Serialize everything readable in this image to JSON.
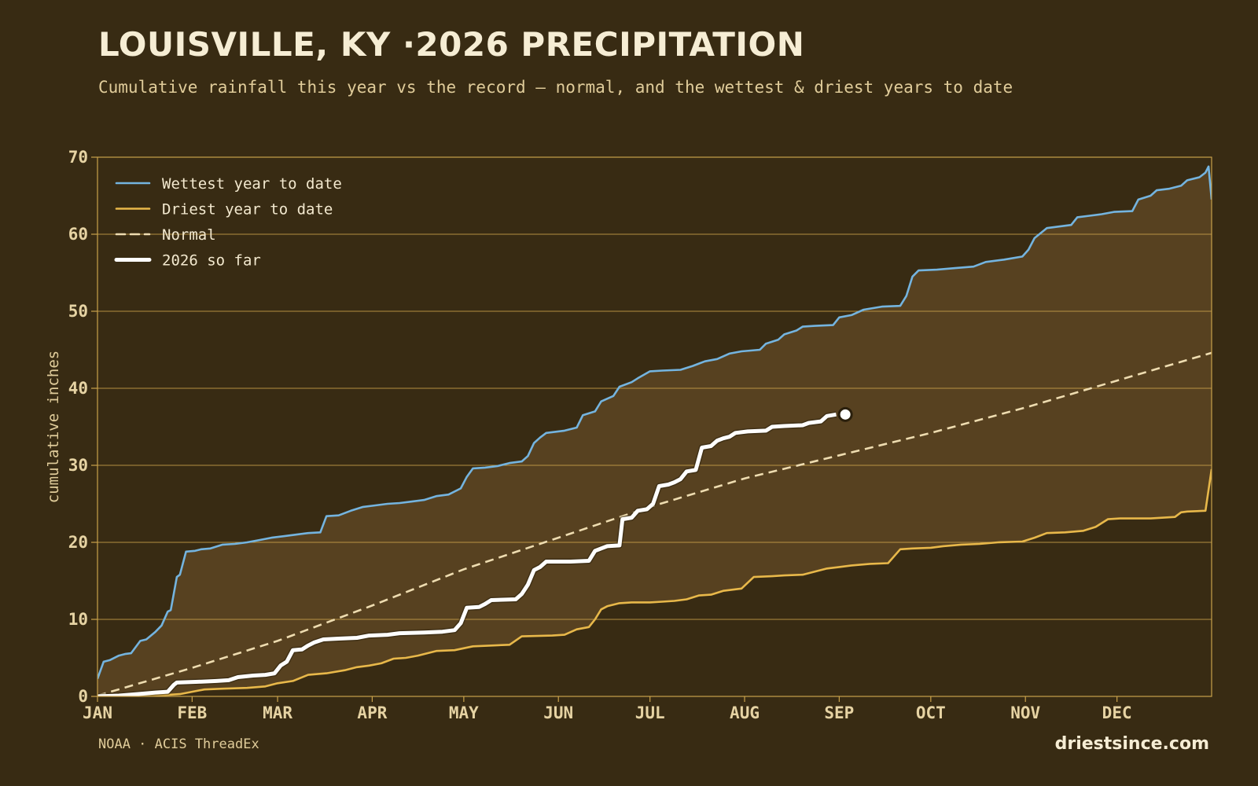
{
  "header": {
    "title": "LOUISVILLE, KY ·2026 PRECIPITATION",
    "subtitle": "Cumulative rainfall this year vs the record — normal, and the wettest & driest years to date"
  },
  "footer": {
    "source": "NOAA · ACIS ThreadEx",
    "brand": "driestsince.com"
  },
  "chart_data": {
    "type": "line",
    "xlabel": "",
    "ylabel": "cumulative inches",
    "ylim": [
      0,
      70
    ],
    "yticks": [
      0,
      10,
      20,
      30,
      40,
      50,
      60,
      70
    ],
    "xlim": [
      1,
      366
    ],
    "month_ticks": [
      {
        "label": "JAN",
        "day": 1
      },
      {
        "label": "FEB",
        "day": 32
      },
      {
        "label": "MAR",
        "day": 60
      },
      {
        "label": "APR",
        "day": 91
      },
      {
        "label": "MAY",
        "day": 121
      },
      {
        "label": "JUN",
        "day": 152
      },
      {
        "label": "JUL",
        "day": 182
      },
      {
        "label": "AUG",
        "day": 213
      },
      {
        "label": "SEP",
        "day": 244
      },
      {
        "label": "OCT",
        "day": 274
      },
      {
        "label": "NOV",
        "day": 305
      },
      {
        "label": "DEC",
        "day": 335
      }
    ],
    "grid": true,
    "legend_position": "top-left",
    "colors": {
      "wettest": "#74b4df",
      "driest": "#e8b84a",
      "normal": "#eedcb0",
      "current": "#ffffff",
      "band": "#574120",
      "grid": "#c9a14a"
    },
    "series": [
      {
        "key": "wettest",
        "name": "Wettest year to date",
        "points": [
          [
            1,
            2.3
          ],
          [
            3,
            4.5
          ],
          [
            5,
            4.7
          ],
          [
            8,
            5.3
          ],
          [
            10,
            5.5
          ],
          [
            12,
            5.6
          ],
          [
            15,
            7.2
          ],
          [
            17,
            7.4
          ],
          [
            20,
            8.4
          ],
          [
            22,
            9.2
          ],
          [
            24,
            11.0
          ],
          [
            25,
            11.2
          ],
          [
            27,
            15.5
          ],
          [
            28,
            15.8
          ],
          [
            30,
            18.8
          ],
          [
            33,
            18.9
          ],
          [
            35,
            19.1
          ],
          [
            38,
            19.2
          ],
          [
            42,
            19.7
          ],
          [
            46,
            19.8
          ],
          [
            50,
            20.0
          ],
          [
            54,
            20.3
          ],
          [
            58,
            20.6
          ],
          [
            62,
            20.8
          ],
          [
            66,
            21.0
          ],
          [
            70,
            21.2
          ],
          [
            74,
            21.3
          ],
          [
            76,
            23.4
          ],
          [
            80,
            23.5
          ],
          [
            84,
            24.1
          ],
          [
            88,
            24.6
          ],
          [
            92,
            24.8
          ],
          [
            96,
            25.0
          ],
          [
            100,
            25.1
          ],
          [
            104,
            25.3
          ],
          [
            108,
            25.5
          ],
          [
            112,
            26.0
          ],
          [
            116,
            26.2
          ],
          [
            120,
            27.0
          ],
          [
            122,
            28.5
          ],
          [
            124,
            29.6
          ],
          [
            128,
            29.7
          ],
          [
            132,
            29.9
          ],
          [
            136,
            30.3
          ],
          [
            140,
            30.5
          ],
          [
            142,
            31.2
          ],
          [
            144,
            32.9
          ],
          [
            146,
            33.6
          ],
          [
            148,
            34.2
          ],
          [
            154,
            34.5
          ],
          [
            158,
            34.9
          ],
          [
            160,
            36.5
          ],
          [
            164,
            37.0
          ],
          [
            166,
            38.3
          ],
          [
            170,
            39.0
          ],
          [
            172,
            40.2
          ],
          [
            176,
            40.8
          ],
          [
            178,
            41.3
          ],
          [
            182,
            42.2
          ],
          [
            186,
            42.3
          ],
          [
            192,
            42.4
          ],
          [
            196,
            42.9
          ],
          [
            200,
            43.5
          ],
          [
            204,
            43.8
          ],
          [
            208,
            44.5
          ],
          [
            212,
            44.8
          ],
          [
            218,
            45.0
          ],
          [
            220,
            45.8
          ],
          [
            224,
            46.3
          ],
          [
            226,
            47.0
          ],
          [
            230,
            47.5
          ],
          [
            232,
            48.0
          ],
          [
            236,
            48.1
          ],
          [
            242,
            48.2
          ],
          [
            244,
            49.2
          ],
          [
            248,
            49.5
          ],
          [
            252,
            50.2
          ],
          [
            258,
            50.6
          ],
          [
            264,
            50.7
          ],
          [
            266,
            52.0
          ],
          [
            268,
            54.5
          ],
          [
            270,
            55.3
          ],
          [
            276,
            55.4
          ],
          [
            282,
            55.6
          ],
          [
            288,
            55.8
          ],
          [
            292,
            56.4
          ],
          [
            298,
            56.7
          ],
          [
            304,
            57.1
          ],
          [
            306,
            58.0
          ],
          [
            308,
            59.5
          ],
          [
            312,
            60.8
          ],
          [
            316,
            61.0
          ],
          [
            320,
            61.2
          ],
          [
            322,
            62.2
          ],
          [
            326,
            62.4
          ],
          [
            330,
            62.6
          ],
          [
            334,
            62.9
          ],
          [
            340,
            63.0
          ],
          [
            342,
            64.5
          ],
          [
            346,
            65.0
          ],
          [
            348,
            65.7
          ],
          [
            352,
            65.9
          ],
          [
            356,
            66.3
          ],
          [
            358,
            67.0
          ],
          [
            362,
            67.4
          ],
          [
            364,
            68.0
          ],
          [
            365,
            68.8
          ],
          [
            366,
            64.5
          ]
        ]
      },
      {
        "key": "driest",
        "name": "Driest year to date",
        "points": [
          [
            1,
            0
          ],
          [
            20,
            0.1
          ],
          [
            28,
            0.3
          ],
          [
            32,
            0.6
          ],
          [
            36,
            0.9
          ],
          [
            42,
            1.0
          ],
          [
            50,
            1.1
          ],
          [
            56,
            1.3
          ],
          [
            60,
            1.7
          ],
          [
            65,
            2.0
          ],
          [
            70,
            2.8
          ],
          [
            76,
            3.0
          ],
          [
            82,
            3.4
          ],
          [
            86,
            3.8
          ],
          [
            90,
            4.0
          ],
          [
            94,
            4.3
          ],
          [
            98,
            4.9
          ],
          [
            102,
            5.0
          ],
          [
            106,
            5.3
          ],
          [
            112,
            5.9
          ],
          [
            118,
            6.0
          ],
          [
            124,
            6.5
          ],
          [
            130,
            6.6
          ],
          [
            136,
            6.7
          ],
          [
            140,
            7.8
          ],
          [
            150,
            7.9
          ],
          [
            154,
            8.0
          ],
          [
            158,
            8.7
          ],
          [
            162,
            9.0
          ],
          [
            164,
            10.0
          ],
          [
            166,
            11.3
          ],
          [
            168,
            11.7
          ],
          [
            172,
            12.1
          ],
          [
            176,
            12.2
          ],
          [
            182,
            12.2
          ],
          [
            186,
            12.3
          ],
          [
            190,
            12.4
          ],
          [
            194,
            12.6
          ],
          [
            198,
            13.1
          ],
          [
            202,
            13.2
          ],
          [
            206,
            13.7
          ],
          [
            212,
            14.0
          ],
          [
            216,
            15.5
          ],
          [
            222,
            15.6
          ],
          [
            226,
            15.7
          ],
          [
            232,
            15.8
          ],
          [
            236,
            16.2
          ],
          [
            240,
            16.6
          ],
          [
            244,
            16.8
          ],
          [
            248,
            17.0
          ],
          [
            254,
            17.2
          ],
          [
            260,
            17.3
          ],
          [
            264,
            19.1
          ],
          [
            268,
            19.2
          ],
          [
            274,
            19.3
          ],
          [
            278,
            19.5
          ],
          [
            284,
            19.7
          ],
          [
            290,
            19.8
          ],
          [
            296,
            20.0
          ],
          [
            304,
            20.1
          ],
          [
            308,
            20.6
          ],
          [
            312,
            21.2
          ],
          [
            318,
            21.3
          ],
          [
            324,
            21.5
          ],
          [
            328,
            22.0
          ],
          [
            332,
            23.0
          ],
          [
            336,
            23.1
          ],
          [
            346,
            23.1
          ],
          [
            354,
            23.3
          ],
          [
            356,
            23.9
          ],
          [
            358,
            24.0
          ],
          [
            364,
            24.1
          ],
          [
            366,
            29.5
          ]
        ]
      },
      {
        "key": "normal",
        "name": "Normal",
        "points": [
          [
            1,
            0.1
          ],
          [
            32,
            3.7
          ],
          [
            60,
            7.2
          ],
          [
            91,
            11.8
          ],
          [
            121,
            16.5
          ],
          [
            152,
            20.6
          ],
          [
            182,
            24.6
          ],
          [
            213,
            28.3
          ],
          [
            244,
            31.3
          ],
          [
            274,
            34.2
          ],
          [
            305,
            37.5
          ],
          [
            335,
            41.0
          ],
          [
            366,
            44.6
          ]
        ]
      },
      {
        "key": "current",
        "name": "2026 so far",
        "points": [
          [
            1,
            0
          ],
          [
            8,
            0.1
          ],
          [
            14,
            0.3
          ],
          [
            20,
            0.5
          ],
          [
            24,
            0.6
          ],
          [
            26,
            1.5
          ],
          [
            27,
            1.8
          ],
          [
            34,
            1.9
          ],
          [
            40,
            2.0
          ],
          [
            44,
            2.1
          ],
          [
            47,
            2.5
          ],
          [
            52,
            2.7
          ],
          [
            56,
            2.8
          ],
          [
            59,
            3.0
          ],
          [
            61,
            4.0
          ],
          [
            63,
            4.5
          ],
          [
            65,
            6.0
          ],
          [
            68,
            6.1
          ],
          [
            70,
            6.6
          ],
          [
            72,
            7.0
          ],
          [
            75,
            7.4
          ],
          [
            80,
            7.5
          ],
          [
            86,
            7.6
          ],
          [
            90,
            7.9
          ],
          [
            96,
            8.0
          ],
          [
            100,
            8.2
          ],
          [
            108,
            8.3
          ],
          [
            114,
            8.4
          ],
          [
            118,
            8.6
          ],
          [
            120,
            9.5
          ],
          [
            122,
            11.5
          ],
          [
            126,
            11.6
          ],
          [
            128,
            12.0
          ],
          [
            130,
            12.5
          ],
          [
            138,
            12.6
          ],
          [
            140,
            13.3
          ],
          [
            142,
            14.5
          ],
          [
            144,
            16.4
          ],
          [
            146,
            16.8
          ],
          [
            148,
            17.5
          ],
          [
            156,
            17.5
          ],
          [
            162,
            17.6
          ],
          [
            164,
            18.9
          ],
          [
            166,
            19.2
          ],
          [
            168,
            19.5
          ],
          [
            172,
            19.6
          ],
          [
            173,
            23.0
          ],
          [
            176,
            23.2
          ],
          [
            178,
            24.1
          ],
          [
            181,
            24.3
          ],
          [
            183,
            25.0
          ],
          [
            185,
            27.3
          ],
          [
            188,
            27.5
          ],
          [
            190,
            27.8
          ],
          [
            192,
            28.2
          ],
          [
            194,
            29.2
          ],
          [
            197,
            29.4
          ],
          [
            199,
            32.3
          ],
          [
            202,
            32.5
          ],
          [
            204,
            33.2
          ],
          [
            206,
            33.5
          ],
          [
            208,
            33.7
          ],
          [
            210,
            34.2
          ],
          [
            214,
            34.4
          ],
          [
            220,
            34.5
          ],
          [
            222,
            35.0
          ],
          [
            226,
            35.1
          ],
          [
            232,
            35.2
          ],
          [
            234,
            35.5
          ],
          [
            238,
            35.7
          ],
          [
            240,
            36.4
          ],
          [
            243,
            36.6
          ]
        ]
      }
    ],
    "current_endpoint": [
      246,
      36.6
    ]
  }
}
